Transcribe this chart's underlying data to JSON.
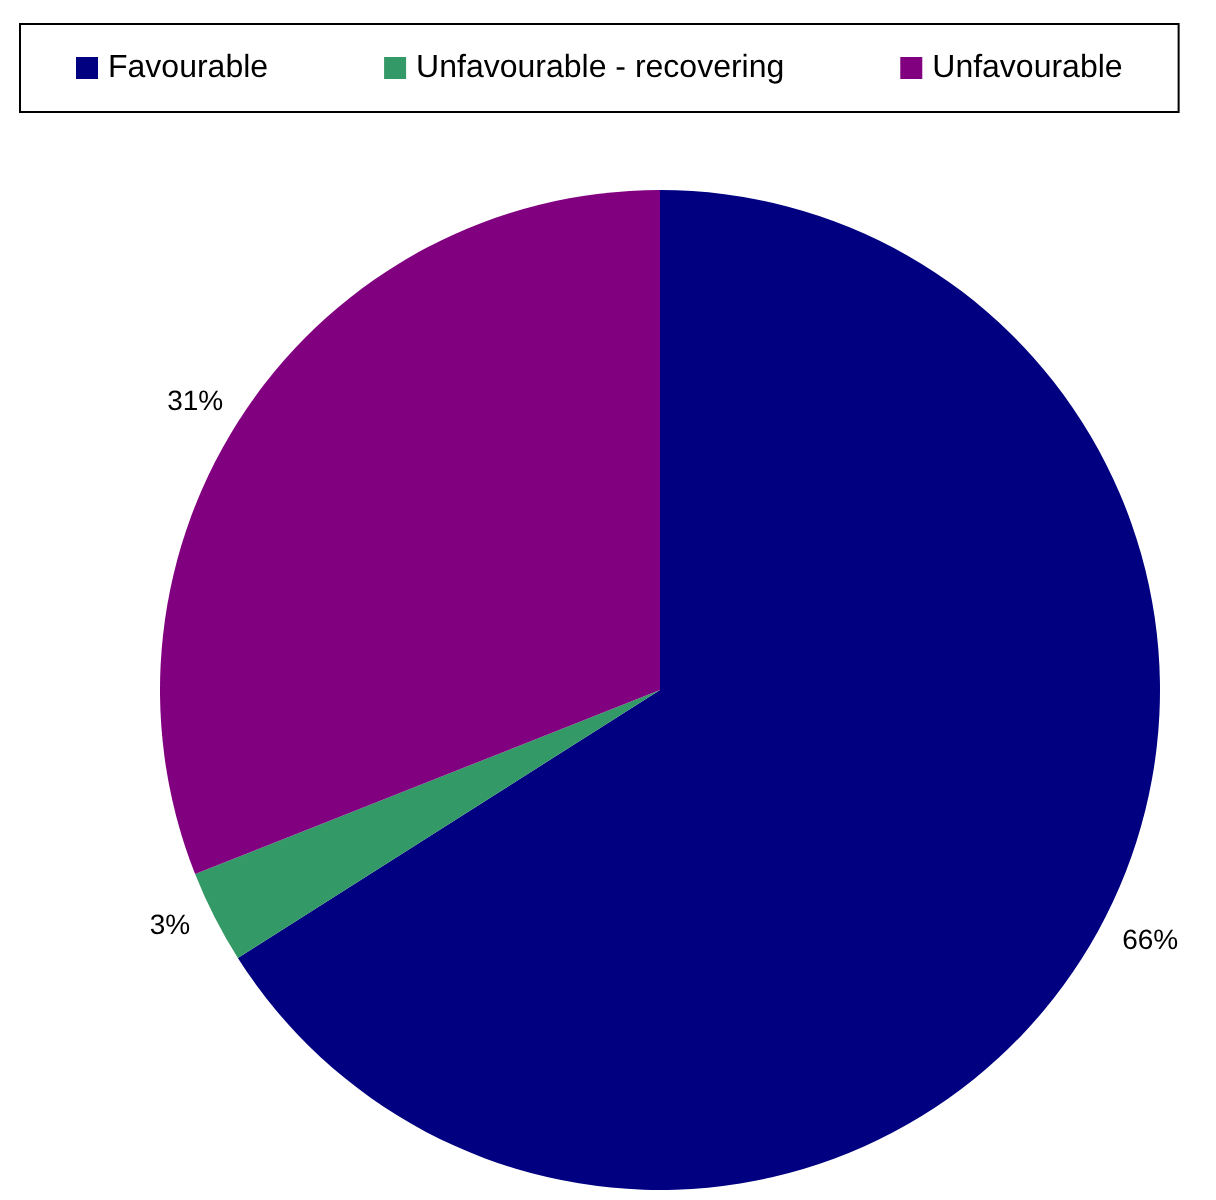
{
  "chart_data": {
    "type": "pie",
    "categories": [
      "Favourable",
      "Unfavourable - recovering",
      "Unfavourable"
    ],
    "values": [
      66,
      3,
      31
    ],
    "colors": [
      "#000080",
      "#339966",
      "#800080"
    ],
    "value_labels": [
      "66%",
      "3%",
      "31%"
    ],
    "legend": "top"
  }
}
